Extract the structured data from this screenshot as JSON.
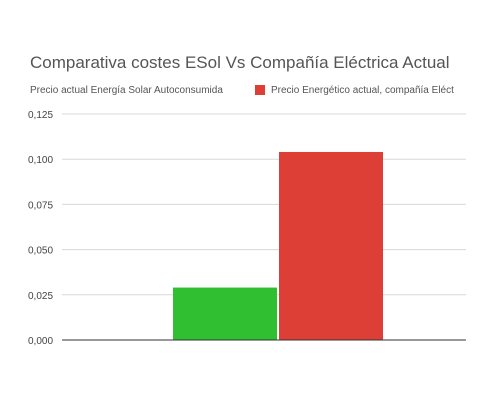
{
  "chart_data": {
    "type": "bar",
    "title": "Comparativa costes ESol Vs Compañía Eléctrica Actual",
    "xlabel": "",
    "ylabel": "",
    "ylim": [
      0,
      0.125
    ],
    "y_ticks": [
      "0,000",
      "0,025",
      "0,050",
      "0,075",
      "0,100",
      "0,125"
    ],
    "y_tick_values": [
      0,
      0.025,
      0.05,
      0.075,
      0.1,
      0.125
    ],
    "grid": true,
    "legend_position": "top-left",
    "categories": [
      ""
    ],
    "series": [
      {
        "name": "Precio actual Energía Solar Autoconsumida",
        "values": [
          0.029
        ],
        "color": "#2fbf30"
      },
      {
        "name": "Precio Energético actual, compañía Eléct",
        "values": [
          0.104
        ],
        "color": "#dd3f36"
      }
    ]
  }
}
